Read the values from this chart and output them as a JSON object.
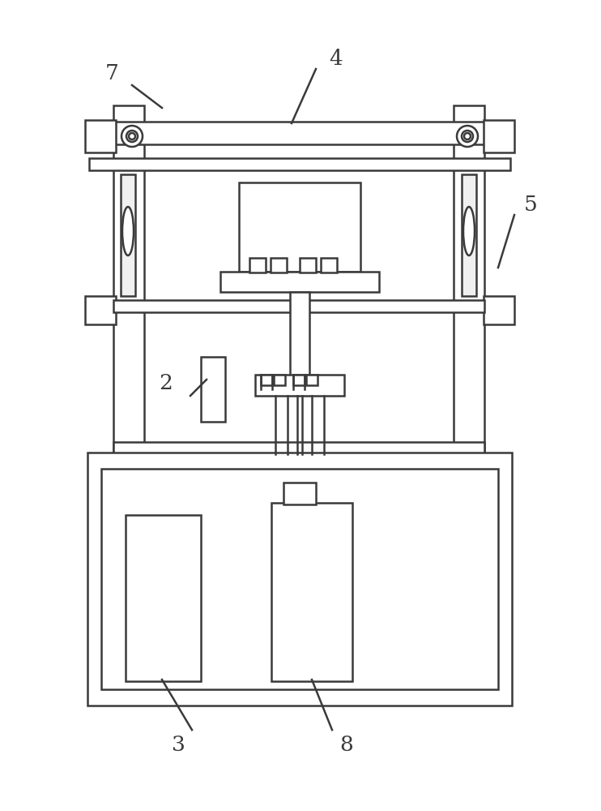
{
  "bg_color": "#ffffff",
  "line_color": "#3a3a3a",
  "lw": 1.8,
  "fig_w": 7.42,
  "fig_h": 10.0,
  "label_fontsize": 19
}
